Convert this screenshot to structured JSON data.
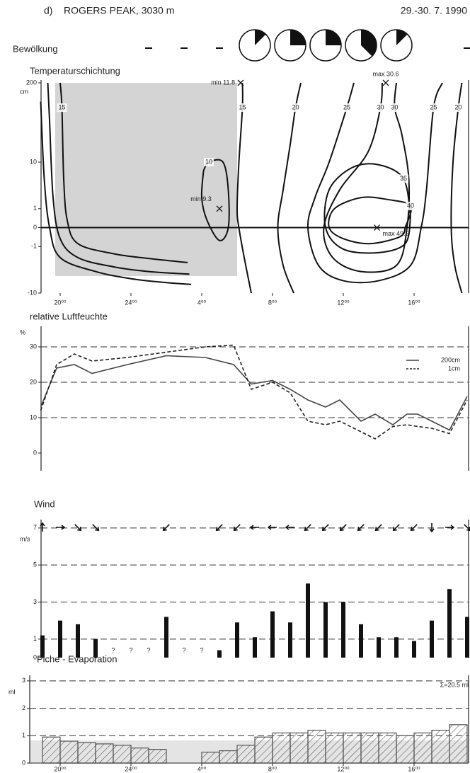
{
  "header": {
    "label": "d)",
    "station": "ROGERS PEAK, 3030 m",
    "date": "29.-30. 7. 1990"
  },
  "chart_data": [
    {
      "type": "pie",
      "title": "Bewölkung",
      "color": "#111",
      "xlim": [
        18.9,
        43.1
      ],
      "x": [
        25,
        27,
        29,
        31,
        33,
        35,
        37,
        39,
        43
      ],
      "values": [
        null,
        null,
        null,
        1,
        2,
        2,
        3,
        1,
        null
      ],
      "total": 8
    },
    {
      "type": "contour",
      "title": "Temperaturschichtung",
      "ylabel": "cm",
      "y_scale": "symlog",
      "xlim": [
        18.9,
        43.1
      ],
      "ylim": [
        -10,
        200
      ],
      "yticks": [
        200,
        10,
        1,
        0,
        -1,
        -10
      ],
      "xticks": [
        {
          "value": 20,
          "label": "20⁰⁰"
        },
        {
          "value": 24,
          "label": "24⁰⁰"
        },
        {
          "value": 28,
          "label": "4⁰⁰"
        },
        {
          "value": 32,
          "label": "8⁰⁰"
        },
        {
          "value": 36,
          "label": "12⁰⁰"
        },
        {
          "value": 40,
          "label": "16⁰⁰"
        }
      ],
      "contours": [
        {
          "level": 15,
          "x": [
            20.0,
            20.1,
            20.2,
            20.4,
            21,
            23,
            25,
            27.2
          ],
          "y": [
            200,
            80,
            5,
            0.3,
            -0.8,
            -1.6,
            -2.1,
            -2.6
          ]
        },
        {
          "level": null,
          "x": [
            19.3,
            19.4,
            19.6,
            20,
            21,
            23,
            25,
            27.3
          ],
          "y": [
            200,
            50,
            2,
            -0.5,
            -2,
            -3.2,
            -4,
            -4.5
          ]
        },
        {
          "level": null,
          "x": [
            18.9,
            19.1,
            19.4,
            20,
            22,
            24,
            26,
            27.4
          ],
          "y": [
            100,
            5,
            0,
            -2,
            -4,
            -5.5,
            -6.5,
            -7
          ]
        },
        {
          "level": 15,
          "x": [
            30.3,
            30.3,
            30.1,
            30.0,
            30.1,
            30.4,
            30.8
          ],
          "y": [
            200,
            80,
            10,
            1,
            0,
            -2,
            -10
          ]
        },
        {
          "level": 20,
          "x": [
            33.6,
            33.3,
            33.0,
            32.6,
            32.3,
            32.6,
            33.2
          ],
          "y": [
            200,
            80,
            20,
            3,
            0,
            -3,
            -10
          ]
        },
        {
          "level": 25,
          "x": [
            36.6,
            36.2,
            35.2,
            34.4,
            34.0,
            34.6,
            36,
            38,
            39.8,
            40.4,
            40.7,
            41.1,
            41.6
          ],
          "y": [
            200,
            80,
            10,
            2,
            0,
            -3,
            -6,
            -6,
            -3,
            0,
            3,
            80,
            200
          ]
        },
        {
          "level": 30,
          "x": [
            38.2,
            38.1,
            37.4,
            35.8,
            34.9,
            35.4,
            37,
            39,
            39.6,
            39.7,
            39.3,
            38.9,
            39.0
          ],
          "y": [
            200,
            80,
            15,
            3,
            0,
            -2,
            -4,
            -3,
            0,
            5,
            30,
            80,
            200
          ]
        },
        {
          "level": 35,
          "x": [
            39.8,
            39.4,
            38,
            36.5,
            35.2,
            35,
            36,
            38,
            39.5,
            39.8
          ],
          "y": [
            0.5,
            5,
            9,
            8,
            3,
            0,
            -1.2,
            -1.5,
            -0.8,
            0.5
          ]
        },
        {
          "level": 40,
          "x": [
            39.5,
            39.8,
            38.5,
            37,
            35.5,
            35.2,
            36,
            37.5,
            39.2,
            39.5
          ],
          "y": [
            0,
            1.2,
            1.8,
            2,
            1,
            0,
            -0.5,
            -0.8,
            -0.4,
            0
          ]
        },
        {
          "level": 20,
          "x": [
            42.7,
            42.5,
            42.2,
            42.1,
            42.3,
            42.7
          ],
          "y": [
            200,
            80,
            10,
            0,
            -3,
            -10
          ]
        },
        {
          "level": 10,
          "x": [
            28.1,
            28.4,
            29.2,
            29.5,
            29.5,
            29.0,
            28.3,
            28.0,
            28.1
          ],
          "y": [
            7,
            10,
            10,
            3,
            0,
            -0.6,
            0.3,
            2,
            7
          ]
        }
      ],
      "markers": [
        {
          "label": "min 11.8",
          "x": 30.2,
          "y": 200
        },
        {
          "label": "max 30.6",
          "x": 38.4,
          "y": 200
        },
        {
          "label": "min 9.3",
          "x": 29.0,
          "y": 1
        },
        {
          "label": "max 49.5",
          "x": 37.9,
          "y": 0
        }
      ]
    },
    {
      "type": "line",
      "title": "relative Luftfeuchte",
      "ylabel": "%",
      "xlim": [
        18.9,
        43.1
      ],
      "ylim": [
        -5,
        35
      ],
      "yticks": [
        0,
        10,
        20,
        30
      ],
      "grid": true,
      "x": [
        18.9,
        19.8,
        20.8,
        21.8,
        23.8,
        26,
        28.2,
        29.8,
        30.8,
        32,
        33,
        34,
        35,
        35.8,
        37,
        37.8,
        38.8,
        39.6,
        40.2,
        41,
        42,
        43
      ],
      "series": [
        {
          "name": "200cm",
          "color": "#444",
          "style": "solid",
          "values": [
            13,
            24,
            25,
            22.5,
            25,
            27.5,
            27,
            25,
            19.5,
            20.5,
            18,
            15,
            13,
            15,
            9,
            11,
            8,
            11,
            11,
            9,
            6.5,
            16
          ]
        },
        {
          "name": "1cm",
          "color": "#222",
          "style": "dashed",
          "values": [
            12,
            25,
            28,
            26,
            27,
            28.5,
            30,
            30.5,
            18,
            20,
            17,
            9,
            8,
            9,
            6,
            4,
            7.5,
            8,
            7.5,
            7,
            5.5,
            15
          ]
        }
      ]
    },
    {
      "type": "bar",
      "title": "Wind",
      "ylabel": "m/s",
      "xlim": [
        18.9,
        43.1
      ],
      "ylim": [
        0,
        7.3
      ],
      "yticks": [
        0,
        1,
        3,
        5,
        7
      ],
      "grid": true,
      "color": "#111",
      "x": [
        19,
        20,
        21,
        22,
        23,
        24,
        25,
        26,
        27,
        28,
        29,
        30,
        31,
        32,
        33,
        34,
        35,
        36,
        37,
        38,
        39,
        40,
        41,
        42,
        43
      ],
      "values": [
        1.2,
        2.0,
        1.8,
        1.0,
        null,
        null,
        null,
        2.2,
        null,
        null,
        0.4,
        1.9,
        1.1,
        2.5,
        1.9,
        4.0,
        3.0,
        3.0,
        1.8,
        1.1,
        1.1,
        0.9,
        2.0,
        3.7,
        2.2
      ],
      "value_labels": [
        null,
        null,
        null,
        null,
        "?",
        "?",
        "?",
        null,
        "?",
        "?",
        null,
        null,
        null,
        null,
        null,
        null,
        null,
        null,
        null,
        null,
        null,
        null,
        null,
        null,
        null
      ],
      "directions": [
        0,
        90,
        135,
        135,
        null,
        null,
        null,
        225,
        null,
        null,
        225,
        225,
        270,
        270,
        270,
        225,
        225,
        225,
        225,
        225,
        225,
        225,
        180,
        90,
        135
      ]
    },
    {
      "type": "histogram",
      "title": "Piche - Evaporation",
      "ylabel": "ml",
      "annotation": "Σ=20.5 ml",
      "xlim": [
        18.9,
        43.1
      ],
      "ylim": [
        0,
        3.1
      ],
      "yticks": [
        0,
        1,
        2,
        3
      ],
      "grid": true,
      "color": "#555",
      "xticks": [
        {
          "value": 20,
          "label": "20⁰⁰"
        },
        {
          "value": 24,
          "label": "24⁰⁰"
        },
        {
          "value": 28,
          "label": "4⁰⁰"
        },
        {
          "value": 32,
          "label": "8⁰⁰"
        },
        {
          "value": 36,
          "label": "12⁰⁰"
        },
        {
          "value": 40,
          "label": "16⁰⁰"
        }
      ],
      "bins": [
        19,
        20,
        21,
        22,
        23,
        24,
        25,
        26,
        27,
        28,
        29,
        30,
        31,
        32,
        33,
        34,
        35,
        36,
        37,
        38,
        39,
        40,
        41,
        42,
        43
      ],
      "values": [
        0.95,
        0.8,
        0.75,
        0.7,
        0.65,
        0.55,
        0.5,
        null,
        null,
        0.4,
        0.45,
        0.65,
        0.95,
        1.1,
        1.1,
        1.2,
        1.1,
        1.1,
        1.1,
        1.1,
        1.0,
        1.1,
        1.2,
        1.4
      ]
    }
  ]
}
